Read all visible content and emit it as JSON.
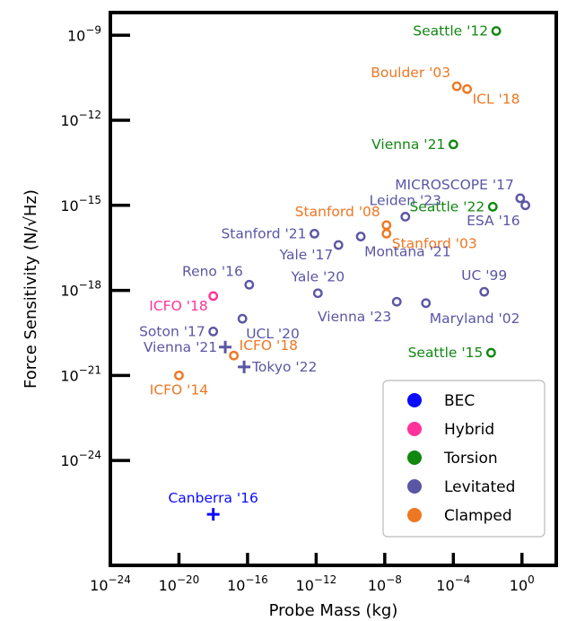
{
  "chart_data": {
    "type": "scatter",
    "xlabel": "Probe Mass (kg)",
    "ylabel": "Force Sensitivity (N/√Hz)",
    "xscale": "log",
    "yscale": "log",
    "xlim_log10": [
      -24,
      2
    ],
    "ylim_log10": [
      -27.7,
      -8.2
    ],
    "x_ticks": [
      -24,
      -20,
      -16,
      -12,
      -8,
      -4,
      0
    ],
    "y_ticks": [
      -24,
      -21,
      -18,
      -15,
      -12,
      -9
    ],
    "grid": false,
    "legend_position": "bottom-right",
    "legend": [
      {
        "name": "BEC",
        "color": "#0a0aff"
      },
      {
        "name": "Hybrid",
        "color": "#ff3399"
      },
      {
        "name": "Torsion",
        "color": "#118811"
      },
      {
        "name": "Levitated",
        "color": "#5b56a4"
      },
      {
        "name": "Clamped",
        "color": "#ee7722"
      }
    ],
    "points": [
      {
        "label": "Seattle '12",
        "category": "Torsion",
        "marker": "circle",
        "log10_mass": -1.5,
        "log10_force": -8.85,
        "label_pos": "left"
      },
      {
        "label": "Boulder '03",
        "category": "Clamped",
        "marker": "circle",
        "log10_mass": -3.8,
        "log10_force": -10.8,
        "label_pos": "left-up"
      },
      {
        "label": "ICL '18",
        "category": "Clamped",
        "marker": "circle",
        "log10_mass": -3.2,
        "log10_force": -10.9,
        "label_pos": "right-down"
      },
      {
        "label": "Vienna '21",
        "category": "Torsion",
        "marker": "circle",
        "log10_mass": -4.0,
        "log10_force": -12.85,
        "label_pos": "left"
      },
      {
        "label": "MICROSCOPE '17",
        "category": "Levitated",
        "marker": "circle",
        "log10_mass": -0.1,
        "log10_force": -14.75,
        "label_pos": "left-up"
      },
      {
        "label": "Seattle '22",
        "category": "Torsion",
        "marker": "circle",
        "log10_mass": -1.7,
        "log10_force": -15.05,
        "label_pos": "left"
      },
      {
        "label": "Leiden '23",
        "category": "Levitated",
        "marker": "circle",
        "log10_mass": -6.8,
        "log10_force": -15.4,
        "label_pos": "above"
      },
      {
        "label": "ESA '16",
        "category": "Levitated",
        "marker": "circle",
        "log10_mass": 0.2,
        "log10_force": -15.0,
        "label_pos": "below-left"
      },
      {
        "label": "Stanford '08",
        "category": "Clamped",
        "marker": "circle",
        "log10_mass": -7.9,
        "log10_force": -15.7,
        "label_pos": "left-up"
      },
      {
        "label": "Stanford '03",
        "category": "Clamped",
        "marker": "circle",
        "log10_mass": -7.9,
        "log10_force": -16.0,
        "label_pos": "right-down"
      },
      {
        "label": "Stanford '21",
        "category": "Levitated",
        "marker": "circle",
        "log10_mass": -12.1,
        "log10_force": -16.0,
        "label_pos": "left"
      },
      {
        "label": "Yale '17",
        "category": "Levitated",
        "marker": "circle",
        "log10_mass": -10.7,
        "log10_force": -16.4,
        "label_pos": "left-down"
      },
      {
        "label": "Montana '21",
        "category": "Levitated",
        "marker": "circle",
        "log10_mass": -9.4,
        "log10_force": -16.1,
        "label_pos": "below-right"
      },
      {
        "label": "Reno '16",
        "category": "Levitated",
        "marker": "circle",
        "log10_mass": -15.9,
        "log10_force": -17.8,
        "label_pos": "left-up"
      },
      {
        "label": "Yale '20",
        "category": "Levitated",
        "marker": "circle",
        "log10_mass": -11.9,
        "log10_force": -18.1,
        "label_pos": "above"
      },
      {
        "label": "UC '99",
        "category": "Levitated",
        "marker": "circle",
        "log10_mass": -2.2,
        "log10_force": -18.05,
        "label_pos": "above"
      },
      {
        "label": "ICFO '18",
        "category": "Hybrid",
        "marker": "circle",
        "log10_mass": -18.0,
        "log10_force": -18.2,
        "label_pos": "left-down"
      },
      {
        "label": "Vienna '23",
        "category": "Levitated",
        "marker": "circle",
        "log10_mass": -7.3,
        "log10_force": -18.4,
        "label_pos": "below-left"
      },
      {
        "label": "Maryland '02",
        "category": "Levitated",
        "marker": "circle",
        "log10_mass": -5.6,
        "log10_force": -18.45,
        "label_pos": "below-right"
      },
      {
        "label": "UCL '20",
        "category": "Levitated",
        "marker": "circle",
        "log10_mass": -16.3,
        "log10_force": -19.0,
        "label_pos": "below-right"
      },
      {
        "label": "Soton '17",
        "category": "Levitated",
        "marker": "circle",
        "log10_mass": -18.0,
        "log10_force": -19.45,
        "label_pos": "left"
      },
      {
        "label": "Vienna '21",
        "category": "Levitated",
        "marker": "plus",
        "log10_mass": -17.3,
        "log10_force": -20.0,
        "label_pos": "left"
      },
      {
        "label": "ICFO '18",
        "category": "Clamped",
        "marker": "circle",
        "log10_mass": -16.8,
        "log10_force": -20.3,
        "label_pos": "right-up"
      },
      {
        "label": "Tokyo '22",
        "category": "Levitated",
        "marker": "plus",
        "log10_mass": -16.2,
        "log10_force": -20.7,
        "label_pos": "right"
      },
      {
        "label": "Seattle '15",
        "category": "Torsion",
        "marker": "circle",
        "log10_mass": -1.8,
        "log10_force": -20.2,
        "label_pos": "left"
      },
      {
        "label": "ICFO '14",
        "category": "Clamped",
        "marker": "circle",
        "log10_mass": -20.0,
        "log10_force": -21.0,
        "label_pos": "below"
      },
      {
        "label": "Canberra '16",
        "category": "BEC",
        "marker": "plus",
        "log10_mass": -18.0,
        "log10_force": -25.9,
        "label_pos": "above"
      }
    ]
  }
}
